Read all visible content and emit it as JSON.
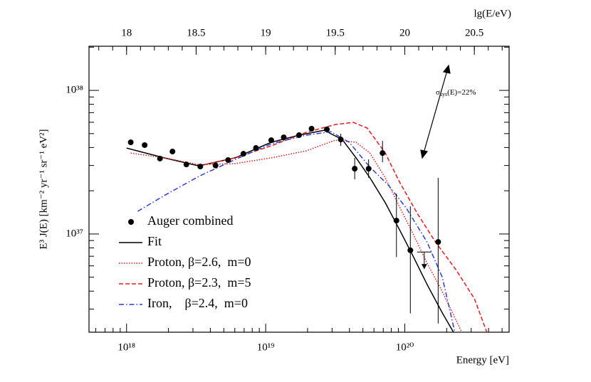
{
  "chart_data": {
    "type": "line",
    "xlabel": "Energy [eV]",
    "x2label": "lg(E/eV)",
    "ylabel": "E³ J(E) [km⁻² yr⁻¹ sr⁻¹ eV²]",
    "xlim": [
      17.73,
      20.75
    ],
    "xticks": [
      18,
      18.5,
      19,
      19.5,
      20,
      20.5
    ],
    "x2lim": [
      5.37e+17,
      5.62e+20
    ],
    "x2ticks": [
      {
        "value": 1e+18,
        "label": "10¹⁸"
      },
      {
        "value": 1e+19,
        "label": "10¹⁹"
      },
      {
        "value": 1e+20,
        "label": "10²⁰"
      }
    ],
    "ylim": [
      2.07e+36,
      2.03e+38
    ],
    "yticks": [
      {
        "value": 1e+37,
        "label": "10³⁷"
      },
      {
        "value": 1e+38,
        "label": "10³⁸"
      }
    ],
    "log_y": true,
    "legend": "lower left",
    "points": {
      "name": "Auger combined",
      "color": "#000000",
      "x": [
        18.03,
        18.13,
        18.24,
        18.33,
        18.43,
        18.53,
        18.64,
        18.73,
        18.84,
        18.93,
        19.04,
        19.13,
        19.24,
        19.33,
        19.44,
        19.54,
        19.64,
        19.74,
        19.84,
        19.94,
        20.04,
        20.24
      ],
      "values": [
        4.35e+37,
        4.16e+37,
        3.35e+37,
        3.75e+37,
        3.05e+37,
        2.95e+37,
        3e+37,
        3.27e+37,
        3.62e+37,
        3.97e+37,
        4.5e+37,
        4.71e+37,
        4.88e+37,
        5.41e+37,
        5.35e+37,
        4.55e+37,
        2.85e+37,
        2.85e+37,
        3.66e+37,
        1.24e+37,
        7.7e+36,
        8.8e+36
      ],
      "err_low": [
        null,
        null,
        null,
        null,
        null,
        null,
        null,
        null,
        null,
        null,
        null,
        null,
        null,
        null,
        null,
        4.11e+37,
        2.4e+37,
        2.46e+37,
        3.16e+37,
        6.9e+36,
        2.8e+36,
        2.38e+36
      ],
      "err_high": [
        null,
        null,
        null,
        null,
        null,
        null,
        null,
        null,
        null,
        null,
        null,
        null,
        null,
        null,
        null,
        4.99e+37,
        3.39e+37,
        3.31e+37,
        4.45e+37,
        1.91e+37,
        1.56e+37,
        2.46e+37
      ]
    },
    "upper_limit": {
      "x": 20.14,
      "value": 5.7e+36
    },
    "series": [
      {
        "name": "Fit",
        "color": "#000000",
        "style": "solid",
        "x": [
          18.0,
          18.27,
          18.52,
          18.78,
          19.04,
          19.24,
          19.42,
          19.55,
          19.65,
          19.75,
          19.86,
          19.96,
          20.06,
          20.16,
          20.27,
          20.35
        ],
        "values": [
          3.97e+37,
          3.39e+37,
          2.98e+37,
          3.39e+37,
          4.35e+37,
          4.88e+37,
          5.28e+37,
          4.55e+37,
          3.39e+37,
          2.46e+37,
          1.65e+37,
          1.08e+37,
          7e+36,
          4.46e+36,
          2.82e+36,
          2.07e+36
        ]
      },
      {
        "name": "Proton, β=2.6,  m=0",
        "color": "#e8191c",
        "style": "dotted",
        "x": [
          18.03,
          18.27,
          18.52,
          18.78,
          19.04,
          19.29,
          19.5,
          19.65,
          19.75,
          19.86,
          19.96,
          20.06,
          20.16,
          20.27,
          20.41
        ],
        "values": [
          3.66e+37,
          3.39e+37,
          3.04e+37,
          3.09e+37,
          3.39e+37,
          3.79e+37,
          4.5e+37,
          4.35e+37,
          3.66e+37,
          2.46e+37,
          1.56e+37,
          1e+37,
          6.27e+36,
          3.97e+36,
          2.07e+36
        ]
      },
      {
        "name": "Proton, β=2.3,  m=5",
        "color": "#e8191c",
        "style": "dashed",
        "x": [
          18.52,
          18.78,
          19.04,
          19.29,
          19.5,
          19.63,
          19.73,
          19.86,
          19.96,
          20.09,
          20.22,
          20.37,
          20.5,
          20.59
        ],
        "values": [
          2.98e+37,
          3.39e+37,
          4.11e+37,
          5.1e+37,
          5.78e+37,
          5.99e+37,
          5.47e+37,
          3.66e+37,
          2.32e+37,
          1.39e+37,
          8.8e+36,
          5.6e+36,
          3.55e+36,
          2.07e+36
        ]
      },
      {
        "name": "Iron,    β=2.4,  m=0",
        "color": "#2b3fd6",
        "style": "dashdot",
        "x": [
          18.08,
          18.27,
          18.52,
          18.78,
          19.04,
          19.29,
          19.47,
          19.6,
          19.75,
          19.88,
          20.01,
          20.16,
          20.27,
          20.36
        ],
        "values": [
          1.44e+37,
          1.85e+37,
          2.52e+37,
          3.3e+37,
          4.25e+37,
          4.88e+37,
          5.16e+37,
          4.35e+37,
          2.92e+37,
          2.2e+37,
          1.52e+37,
          8.8e+36,
          4.99e+36,
          2.07e+36
        ]
      }
    ],
    "annotation": {
      "symbol": "σ",
      "sub": "sys",
      "text": "(E)=22%"
    }
  }
}
